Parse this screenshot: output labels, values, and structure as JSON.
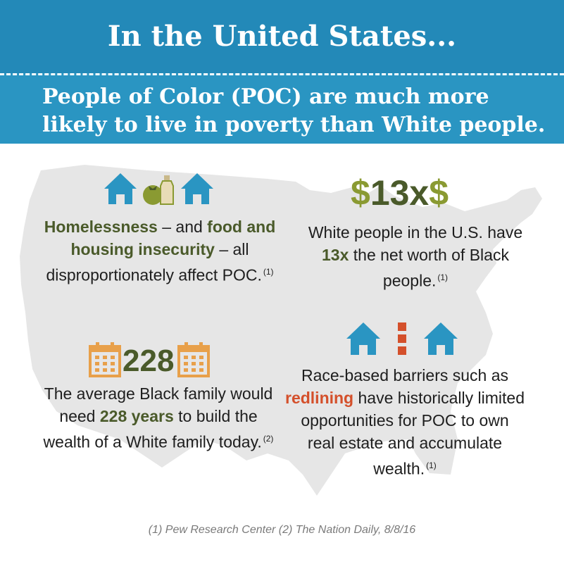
{
  "title": "In the United States...",
  "subtitle": "People of Color (POC) are much more likely to live in poverty than White people.",
  "stat1": {
    "em1": "Homelessness",
    "t1": " – and ",
    "em2": "food and housing insecurity",
    "t2": " – all disproportionately affect POC.",
    "ref": "(1)"
  },
  "stat2": {
    "big_dollar_left": "$",
    "big_value": "13x",
    "big_dollar_right": "$",
    "t1": "White people in the U.S. have ",
    "em": "13x",
    "t2": " the net worth of Black people.",
    "ref": "(1)"
  },
  "stat3": {
    "big_value": "228",
    "t1": "The average Black family would need ",
    "em": "228 years",
    "t2": " to build the wealth of a White family today.",
    "ref": "(2)"
  },
  "stat4": {
    "t1": "Race-based barriers such as ",
    "em": "redlining",
    "t2": " have historically limited opportunities for POC to own real estate and accumulate wealth.",
    "ref": "(1)"
  },
  "footer": "(1) Pew Research Center (2) The Nation Daily, 8/8/16",
  "colors": {
    "header_dark": "#2389b8",
    "header_light": "#2a95c2",
    "accent_green": "#4a5a2a",
    "dollar_green": "#8a9a32",
    "accent_red": "#d4502b",
    "house_blue": "#2a95c2",
    "calendar_orange": "#e8a04a",
    "map_gray": "#e6e6e6"
  },
  "icons": [
    "house-icon",
    "tomato-icon",
    "bottle-icon",
    "calendar-icon",
    "divider-icon"
  ]
}
